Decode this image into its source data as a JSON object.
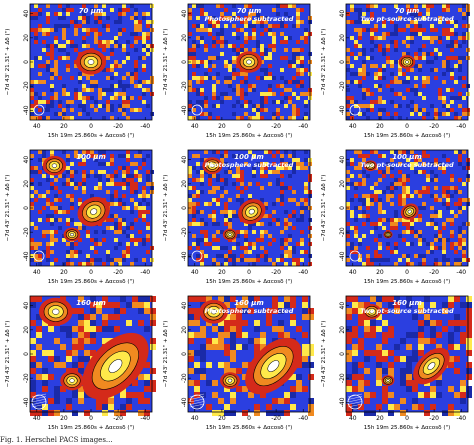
{
  "figure": {
    "rows": [
      {
        "band": "70 µm",
        "panels": [
          {
            "title_line1": "70 µm",
            "title_line2": ""
          },
          {
            "title_line1": "70 µm",
            "title_line2": "Photosphere subtracted"
          },
          {
            "title_line1": "70 µm",
            "title_line2": "Two pt-source subtracted"
          }
        ]
      },
      {
        "band": "100 µm",
        "panels": [
          {
            "title_line1": "100 µm",
            "title_line2": ""
          },
          {
            "title_line1": "100 µm",
            "title_line2": "Photosphere subtracted"
          },
          {
            "title_line1": "100 µm",
            "title_line2": "Two pt-source subtracted"
          }
        ]
      },
      {
        "band": "160 µm",
        "panels": [
          {
            "title_line1": "160 µm",
            "title_line2": ""
          },
          {
            "title_line1": "160 µm",
            "title_line2": "Photosphere subtracted"
          },
          {
            "title_line1": "160 µm",
            "title_line2": "Two pt-source subtracted"
          }
        ]
      }
    ],
    "x_axis_label": "15h 19m 25.860s + Δαcosδ (\")",
    "y_axis_label": "−7d 43' 21.31\" + Δδ (\")",
    "x_ticks": [
      "40",
      "20",
      "0",
      "-20",
      "-40"
    ],
    "y_ticks": [
      "-40",
      "-20",
      "0",
      "20",
      "40"
    ],
    "colors": {
      "background_map": "#2b3fe0",
      "noise_red": "#d42a1a",
      "noise_orange": "#f08a20",
      "source_yellow": "#ffe94a",
      "core_white": "#ffffff",
      "contour": "#000000"
    }
  },
  "caption_text": "Fig. 1. Herschel PACS images..."
}
